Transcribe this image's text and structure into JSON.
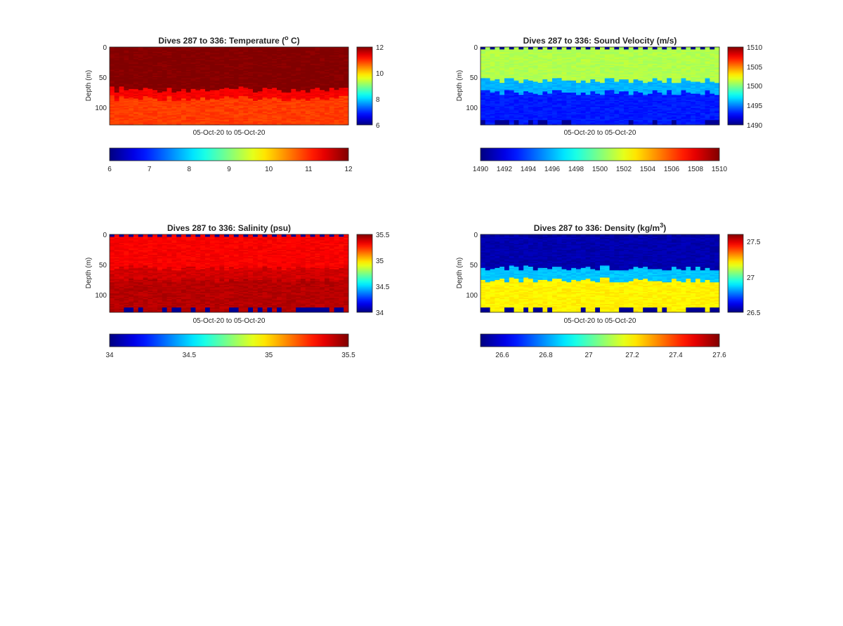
{
  "chart_data": [
    {
      "type": "heatmap",
      "title_main": "Dives 287 to 336: Temperature (",
      "title_sup": "o",
      "title_end": " C)",
      "xlabel": "05-Oct-20 to 05-Oct-20",
      "ylabel": "Depth (m)",
      "ylim": [
        0,
        130
      ],
      "y_ticks": [
        0,
        50,
        100
      ],
      "y_tick_labels": [
        "0",
        "50",
        "100"
      ],
      "clim": [
        6,
        12
      ],
      "side_colorbar_ticks": [
        6,
        8,
        10,
        12
      ],
      "side_colorbar_tick_labels": [
        "6",
        "8",
        "10",
        "12"
      ],
      "bottom_colorbar_ticks": [
        6,
        7,
        8,
        9,
        10,
        11,
        12
      ],
      "bottom_colorbar_tick_labels": [
        "6",
        "7",
        "8",
        "9",
        "10",
        "11",
        "12"
      ],
      "colormap": "jet",
      "dives": [
        287,
        336
      ],
      "layers": [
        {
          "depth_range": [
            0,
            70
          ],
          "value": 12
        },
        {
          "depth_range": [
            70,
            85
          ],
          "value": 11.3
        },
        {
          "depth_range": [
            85,
            130
          ],
          "value": 10.9
        }
      ]
    },
    {
      "type": "heatmap",
      "title_main": "Dives 287 to 336: Sound Velocity (m/s)",
      "title_sup": "",
      "title_end": "",
      "xlabel": "05-Oct-20 to 05-Oct-20",
      "ylabel": "Depth (m)",
      "ylim": [
        0,
        130
      ],
      "y_ticks": [
        0,
        50,
        100
      ],
      "y_tick_labels": [
        "0",
        "50",
        "100"
      ],
      "clim": [
        1490,
        1510
      ],
      "side_colorbar_ticks": [
        1490,
        1495,
        1500,
        1505,
        1510
      ],
      "side_colorbar_tick_labels": [
        "1490",
        "1495",
        "1500",
        "1505",
        "1510"
      ],
      "bottom_colorbar_ticks": [
        1490,
        1492,
        1494,
        1496,
        1498,
        1500,
        1502,
        1504,
        1506,
        1508,
        1510
      ],
      "bottom_colorbar_tick_labels": [
        "1490",
        "1492",
        "1494",
        "1496",
        "1498",
        "1500",
        "1502",
        "1504",
        "1506",
        "1508",
        "1510"
      ],
      "colormap": "jet",
      "dives": [
        287,
        336
      ],
      "layers": [
        {
          "depth_range": [
            0,
            55
          ],
          "value": 1501
        },
        {
          "depth_range": [
            55,
            75
          ],
          "value": 1496
        },
        {
          "depth_range": [
            75,
            130
          ],
          "value": 1493
        }
      ]
    },
    {
      "type": "heatmap",
      "title_main": "Dives 287 to 336: Salinity (psu)",
      "title_sup": "",
      "title_end": "",
      "xlabel": "05-Oct-20 to 05-Oct-20",
      "ylabel": "Depth (m)",
      "ylim": [
        0,
        130
      ],
      "y_ticks": [
        0,
        50,
        100
      ],
      "y_tick_labels": [
        "0",
        "50",
        "100"
      ],
      "clim": [
        34,
        35.5
      ],
      "side_colorbar_ticks": [
        34,
        34.5,
        35,
        35.5
      ],
      "side_colorbar_tick_labels": [
        "34",
        "34.5",
        "35",
        "35.5"
      ],
      "bottom_colorbar_ticks": [
        34,
        34.5,
        35,
        35.5
      ],
      "bottom_colorbar_tick_labels": [
        "34",
        "34.5",
        "35",
        "35.5"
      ],
      "colormap": "jet",
      "dives": [
        287,
        336
      ],
      "layers": [
        {
          "depth_range": [
            0,
            55
          ],
          "value": 35.32
        },
        {
          "depth_range": [
            55,
            75
          ],
          "value": 35.38
        },
        {
          "depth_range": [
            75,
            130
          ],
          "value": 35.42
        }
      ]
    },
    {
      "type": "heatmap",
      "title_main": "Dives 287 to 336: Density (kg/m",
      "title_sup": "3",
      "title_end": ")",
      "xlabel": "05-Oct-20 to 05-Oct-20",
      "ylabel": "Depth (m)",
      "ylim": [
        0,
        130
      ],
      "y_ticks": [
        0,
        50,
        100
      ],
      "y_tick_labels": [
        "0",
        "50",
        "100"
      ],
      "clim": [
        26.5,
        27.6
      ],
      "side_colorbar_ticks": [
        26.5,
        27,
        27.5
      ],
      "side_colorbar_tick_labels": [
        "26.5",
        "27",
        "27.5"
      ],
      "bottom_colorbar_ticks": [
        26.6,
        26.8,
        27,
        27.2,
        27.4,
        27.6
      ],
      "bottom_colorbar_tick_labels": [
        "26.6",
        "26.8",
        "27",
        "27.2",
        "27.4",
        "27.6"
      ],
      "colormap": "jet",
      "dives": [
        287,
        336
      ],
      "layers": [
        {
          "depth_range": [
            0,
            55
          ],
          "value": 26.55
        },
        {
          "depth_range": [
            55,
            75
          ],
          "value": 26.85
        },
        {
          "depth_range": [
            75,
            130
          ],
          "value": 27.2
        }
      ]
    }
  ]
}
